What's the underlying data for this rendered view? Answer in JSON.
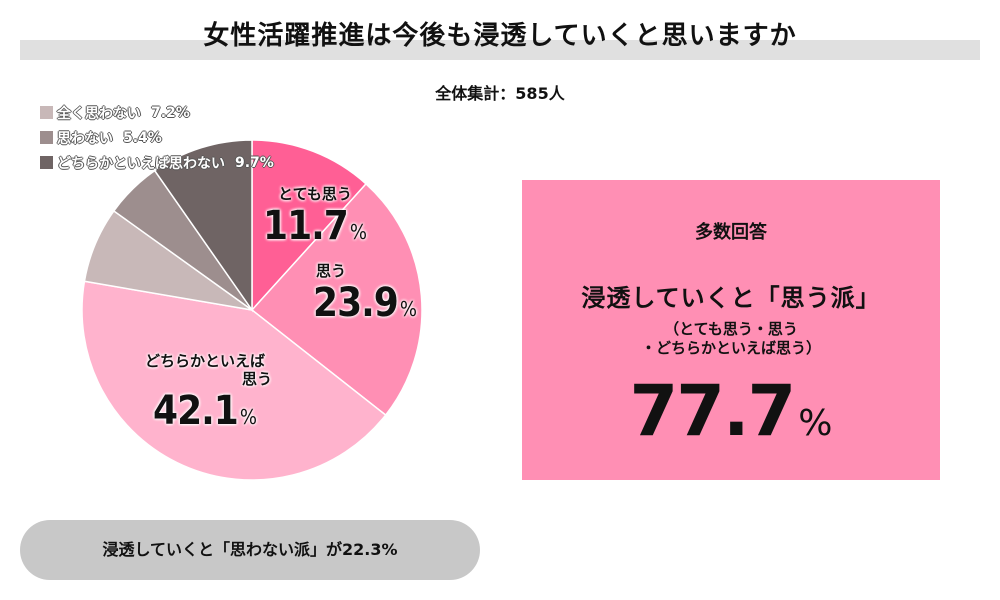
{
  "header": {
    "title": "女性活躍推進は今後も浸透していくと思いますか",
    "total": "全体集計：585人"
  },
  "legend": [
    {
      "label": "全く思わない",
      "value": "7.2%",
      "color": "#c8b8b8"
    },
    {
      "label": "思わない",
      "value": "5.4%",
      "color": "#9d8e8e"
    },
    {
      "label": "どちらかといえば思わない",
      "value": "9.7%",
      "color": "#6f6464"
    }
  ],
  "chart_data": {
    "type": "pie",
    "title": "女性活躍推進は今後も浸透していくと思いますか",
    "slices": [
      {
        "label": "とても思う",
        "value": 11.7,
        "color": "#ff5f95"
      },
      {
        "label": "思う",
        "value": 23.9,
        "color": "#ff8fb4"
      },
      {
        "label": "どちらかといえば思う",
        "value": 42.1,
        "color": "#ffb3cd"
      },
      {
        "label": "全く思わない",
        "value": 7.2,
        "color": "#c8b8b8"
      },
      {
        "label": "思わない",
        "value": 5.4,
        "color": "#9d8e8e"
      },
      {
        "label": "どちらかといえば思わない",
        "value": 9.7,
        "color": "#6f6464"
      }
    ],
    "legend_position": "top-left"
  },
  "slice_labels": [
    {
      "name": "とても思う",
      "num": "11.7",
      "unit": "%"
    },
    {
      "name": "思う",
      "num": "23.9",
      "unit": "%"
    },
    {
      "name_line1": "どちらかといえば",
      "name_line2": "思う",
      "num": "42.1",
      "unit": "%"
    }
  ],
  "summary": {
    "heading": "多数回答",
    "main": "浸透していくと「思う派」",
    "sub_line1": "（とても思う・思う",
    "sub_line2": "・どちらかといえば思う）",
    "num": "77.7",
    "unit": "%",
    "bg_color": "#ff8fb4"
  },
  "footer": {
    "pill": "浸透していくと「思わない派」が22.3%"
  }
}
